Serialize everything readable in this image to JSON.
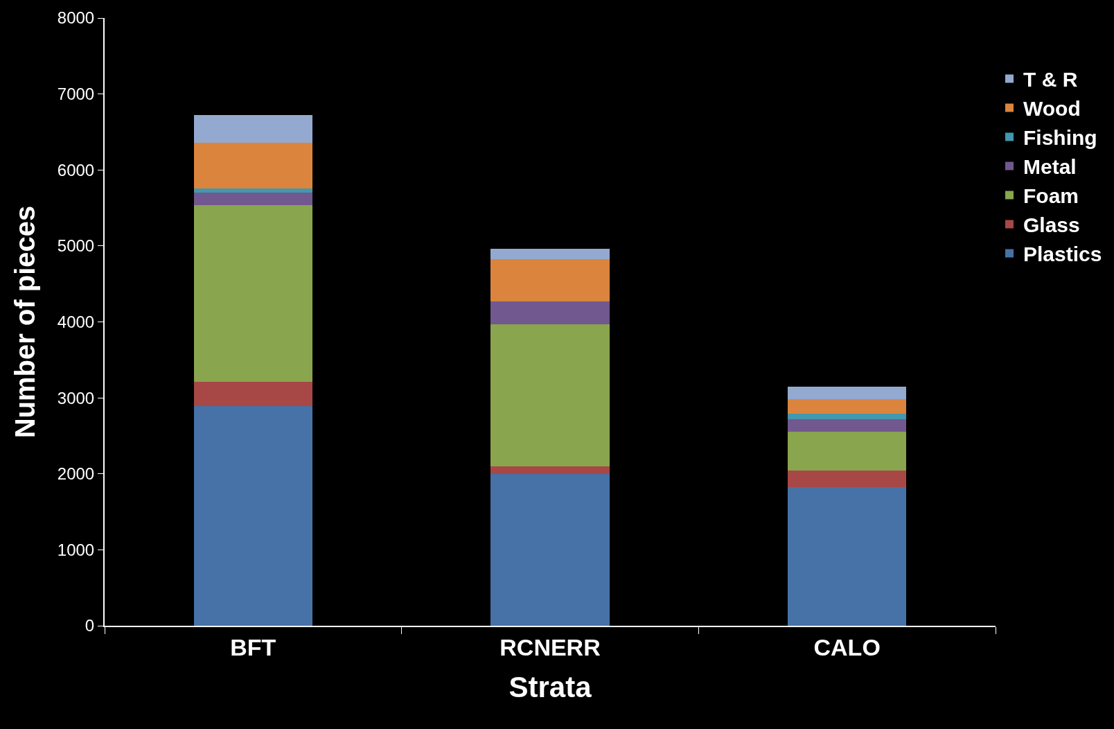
{
  "chart_data": {
    "type": "bar",
    "stacked": true,
    "xlabel": "Strata",
    "ylabel": "Number of pieces",
    "categories": [
      "BFT",
      "RCNERR",
      "CALO"
    ],
    "series": [
      {
        "name": "Plastics",
        "color": "#4672a8",
        "values": [
          2890,
          2000,
          1820
        ]
      },
      {
        "name": "Glass",
        "color": "#a74846",
        "values": [
          320,
          100,
          220
        ]
      },
      {
        "name": "Foam",
        "color": "#89a54e",
        "values": [
          2330,
          1870,
          510
        ]
      },
      {
        "name": "Metal",
        "color": "#71588f",
        "values": [
          160,
          300,
          170
        ]
      },
      {
        "name": "Fishing",
        "color": "#4198af",
        "values": [
          60,
          0,
          70
        ]
      },
      {
        "name": "Wood",
        "color": "#db843d",
        "values": [
          600,
          560,
          190
        ]
      },
      {
        "name": "T & R",
        "color": "#93a9d0",
        "values": [
          360,
          130,
          170
        ]
      }
    ],
    "ylim": [
      0,
      8000
    ],
    "yticks": [
      0,
      1000,
      2000,
      3000,
      4000,
      5000,
      6000,
      7000,
      8000
    ],
    "grid": false,
    "legend": "right"
  }
}
